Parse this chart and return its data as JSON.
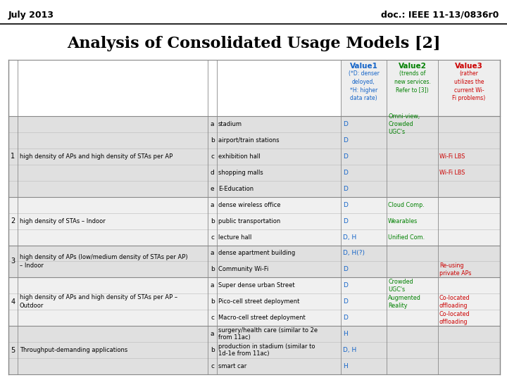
{
  "header_left": "July 2013",
  "header_right": "doc.: IEEE 11-13/0836r0",
  "title": "Analysis of Consolidated Usage Models [2]",
  "bg_color": "#ffffff",
  "value1_color": "#1464c8",
  "value2_color": "#008000",
  "value3_color": "#cc0000",
  "col_headers": [
    {
      "text": "Value1",
      "sub": "(*D: denser\ndeloyed,\n*H: higher\ndata rate)",
      "color": "#1464c8"
    },
    {
      "text": "Value2",
      "sub": "(trends of\nnew services.\nRefer to [3])",
      "color": "#008000"
    },
    {
      "text": "Value3",
      "sub": "(rather\nutilizes the\ncurrent Wi-\nFi problems)",
      "color": "#cc0000"
    }
  ],
  "rows": [
    {
      "group": "1",
      "group_desc": "high density of APs and high density of STAs per AP",
      "sub": "a",
      "scenario": "stadium",
      "v1": "D",
      "v2": "Omni-view,\nCrowded\nUGC's",
      "v3": ""
    },
    {
      "group": "",
      "group_desc": "",
      "sub": "b",
      "scenario": "airport/train stations",
      "v1": "D",
      "v2": "",
      "v3": ""
    },
    {
      "group": "",
      "group_desc": "",
      "sub": "c",
      "scenario": "exhibition hall",
      "v1": "D",
      "v2": "",
      "v3": "Wi-Fi LBS"
    },
    {
      "group": "",
      "group_desc": "",
      "sub": "d",
      "scenario": "shopping malls",
      "v1": "D",
      "v2": "",
      "v3": "Wi-Fi LBS"
    },
    {
      "group": "",
      "group_desc": "",
      "sub": "e",
      "scenario": "E-Education",
      "v1": "D",
      "v2": "",
      "v3": ""
    },
    {
      "group": "2",
      "group_desc": "high density of STAs – Indoor",
      "sub": "a",
      "scenario": "dense wireless office",
      "v1": "D",
      "v2": "Cloud Comp.",
      "v3": ""
    },
    {
      "group": "",
      "group_desc": "",
      "sub": "b",
      "scenario": "public transportation",
      "v1": "D",
      "v2": "Wearables",
      "v3": ""
    },
    {
      "group": "",
      "group_desc": "",
      "sub": "c",
      "scenario": "lecture hall",
      "v1": "D, H",
      "v2": "Unified Com.",
      "v3": ""
    },
    {
      "group": "3",
      "group_desc": "high density of APs (low/medium density of STAs per AP)\n– Indoor",
      "sub": "a",
      "scenario": "dense apartment building",
      "v1": "D, H(?)",
      "v2": "",
      "v3": ""
    },
    {
      "group": "",
      "group_desc": "",
      "sub": "b",
      "scenario": "Community Wi-Fi",
      "v1": "D",
      "v2": "",
      "v3": "Re-using\nprivate APs"
    },
    {
      "group": "4",
      "group_desc": "high density of APs and high density of STAs per AP –\nOutdoor",
      "sub": "a",
      "scenario": "Super dense urban Street",
      "v1": "D",
      "v2": "Crowded\nUGC's",
      "v3": ""
    },
    {
      "group": "",
      "group_desc": "",
      "sub": "b",
      "scenario": "Pico-cell street deployment",
      "v1": "D",
      "v2": "Augmented\nReality",
      "v3": "Co-located\noffloading"
    },
    {
      "group": "",
      "group_desc": "",
      "sub": "c",
      "scenario": "Macro-cell street deployment",
      "v1": "D",
      "v2": "",
      "v3": "Co-located\noffloading"
    },
    {
      "group": "5",
      "group_desc": "Throughput-demanding applications",
      "sub": "a",
      "scenario": "surgery/health care (similar to 2e\nfrom 11ac)",
      "v1": "H",
      "v2": "",
      "v3": ""
    },
    {
      "group": "",
      "group_desc": "",
      "sub": "b",
      "scenario": "production in stadium (similar to\n1d-1e from 11ac)",
      "v1": "D, H",
      "v2": "",
      "v3": ""
    },
    {
      "group": "",
      "group_desc": "",
      "sub": "c",
      "scenario": "smart car",
      "v1": "H",
      "v2": "",
      "v3": ""
    }
  ],
  "group_spans": [
    {
      "group": "1",
      "start": 0,
      "end": 4,
      "desc": "high density of APs and high density of STAs per AP"
    },
    {
      "group": "2",
      "start": 5,
      "end": 7,
      "desc": "high density of STAs – Indoor"
    },
    {
      "group": "3",
      "start": 8,
      "end": 9,
      "desc": "high density of APs (low/medium density of STAs per AP)\n– Indoor"
    },
    {
      "group": "4",
      "start": 10,
      "end": 12,
      "desc": "high density of APs and high density of STAs per AP –\nOutdoor"
    },
    {
      "group": "5",
      "start": 13,
      "end": 15,
      "desc": "Throughput-demanding applications"
    }
  ],
  "group_bg": {
    "1": "#e0e0e0",
    "2": "#f0f0f0",
    "3": "#e0e0e0",
    "4": "#f0f0f0",
    "5": "#e0e0e0"
  }
}
